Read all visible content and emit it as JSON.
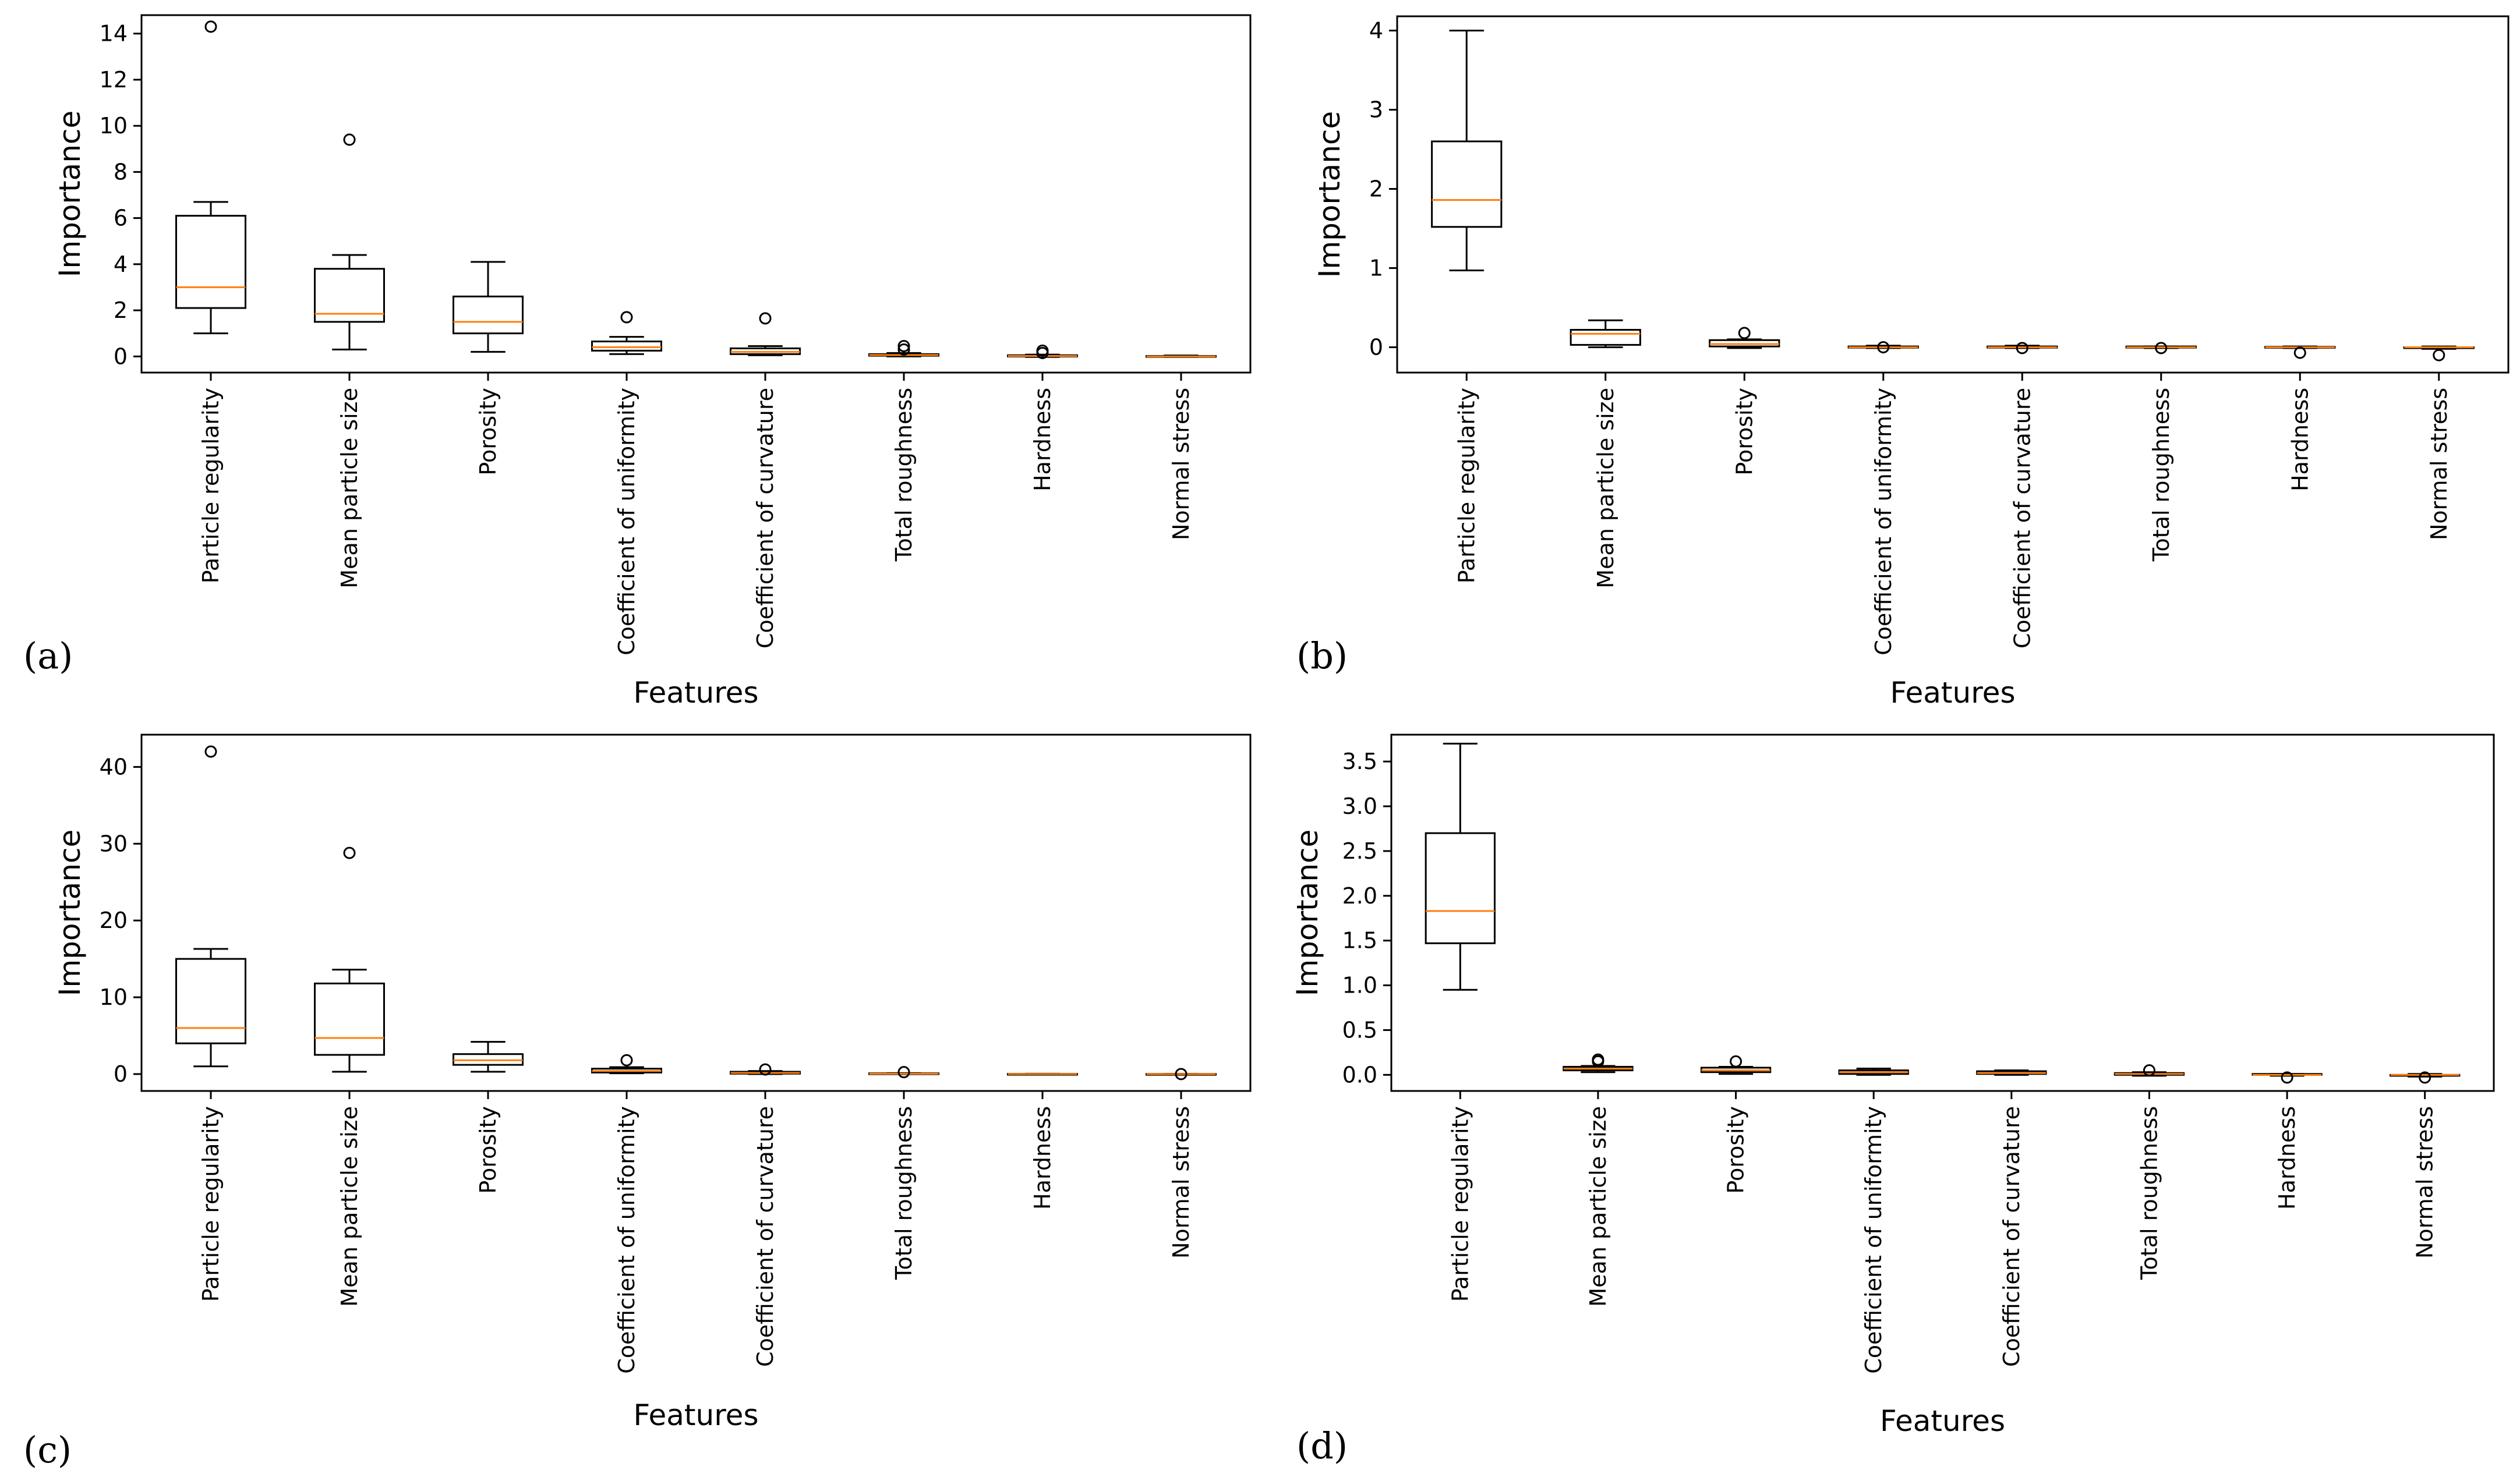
{
  "figure": {
    "colors": {
      "box": "#000000",
      "median": "#ff7f0e",
      "background": "#ffffff"
    }
  },
  "chart_data": [
    {
      "panel": "(a)",
      "type": "box",
      "xlabel": "Features",
      "ylabel": "Importance",
      "ylim": [
        -0.7,
        14.8
      ],
      "yticks": [
        0,
        2,
        4,
        6,
        8,
        10,
        12,
        14
      ],
      "categories": [
        "Particle regularity",
        "Mean particle size",
        "Porosity",
        "Coefficient of uniformity",
        "Coefficient of curvature",
        "Total roughness",
        "Hardness",
        "Normal stress"
      ],
      "boxes": [
        {
          "whislo": 1.0,
          "q1": 2.1,
          "med": 3.0,
          "q3": 6.1,
          "whishi": 6.7,
          "fliers": [
            14.3
          ]
        },
        {
          "whislo": 0.3,
          "q1": 1.5,
          "med": 1.85,
          "q3": 3.8,
          "whishi": 4.4,
          "fliers": [
            9.4
          ]
        },
        {
          "whislo": 0.2,
          "q1": 1.0,
          "med": 1.5,
          "q3": 2.6,
          "whishi": 4.1,
          "fliers": []
        },
        {
          "whislo": 0.1,
          "q1": 0.25,
          "med": 0.4,
          "q3": 0.65,
          "whishi": 0.85,
          "fliers": [
            1.7
          ]
        },
        {
          "whislo": 0.05,
          "q1": 0.1,
          "med": 0.2,
          "q3": 0.35,
          "whishi": 0.45,
          "fliers": [
            1.65
          ]
        },
        {
          "whislo": 0.0,
          "q1": 0.03,
          "med": 0.06,
          "q3": 0.1,
          "whishi": 0.15,
          "fliers": [
            0.3,
            0.45
          ]
        },
        {
          "whislo": -0.02,
          "q1": 0.0,
          "med": 0.02,
          "q3": 0.05,
          "whishi": 0.08,
          "fliers": [
            0.15,
            0.25
          ]
        },
        {
          "whislo": -0.02,
          "q1": 0.0,
          "med": 0.0,
          "q3": 0.02,
          "whishi": 0.04,
          "fliers": []
        }
      ]
    },
    {
      "panel": "(b)",
      "type": "box",
      "xlabel": "Features",
      "ylabel": "Importance",
      "ylim": [
        -0.32,
        4.18
      ],
      "yticks": [
        0,
        1,
        2,
        3,
        4
      ],
      "categories": [
        "Particle regularity",
        "Mean particle size",
        "Porosity",
        "Coefficient of uniformity",
        "Coefficient of curvature",
        "Total roughness",
        "Hardness",
        "Normal stress"
      ],
      "boxes": [
        {
          "whislo": 0.97,
          "q1": 1.52,
          "med": 1.86,
          "q3": 2.6,
          "whishi": 4.0,
          "fliers": []
        },
        {
          "whislo": 0.0,
          "q1": 0.03,
          "med": 0.17,
          "q3": 0.22,
          "whishi": 0.34,
          "fliers": []
        },
        {
          "whislo": -0.01,
          "q1": 0.01,
          "med": 0.04,
          "q3": 0.09,
          "whishi": 0.1,
          "fliers": [
            0.18
          ]
        },
        {
          "whislo": -0.01,
          "q1": -0.005,
          "med": 0.0,
          "q3": 0.01,
          "whishi": 0.02,
          "fliers": [
            0.0
          ]
        },
        {
          "whislo": -0.01,
          "q1": -0.005,
          "med": 0.0,
          "q3": 0.01,
          "whishi": 0.02,
          "fliers": [
            -0.01
          ]
        },
        {
          "whislo": -0.01,
          "q1": -0.005,
          "med": 0.0,
          "q3": 0.01,
          "whishi": 0.01,
          "fliers": [
            -0.01
          ]
        },
        {
          "whislo": -0.01,
          "q1": -0.005,
          "med": 0.0,
          "q3": 0.005,
          "whishi": 0.01,
          "fliers": [
            -0.07
          ]
        },
        {
          "whislo": -0.02,
          "q1": -0.01,
          "med": 0.0,
          "q3": 0.0,
          "whishi": 0.01,
          "fliers": [
            -0.1
          ]
        }
      ]
    },
    {
      "panel": "(c)",
      "type": "box",
      "xlabel": "Features",
      "ylabel": "Importance",
      "ylim": [
        -2.2,
        44.2
      ],
      "yticks": [
        0,
        10,
        20,
        30,
        40
      ],
      "categories": [
        "Particle regularity",
        "Mean particle size",
        "Porosity",
        "Coefficient of uniformity",
        "Coefficient of curvature",
        "Total roughness",
        "Hardness",
        "Normal stress"
      ],
      "boxes": [
        {
          "whislo": 1.0,
          "q1": 4.0,
          "med": 6.0,
          "q3": 15.0,
          "whishi": 16.3,
          "fliers": [
            42.0
          ]
        },
        {
          "whislo": 0.3,
          "q1": 2.5,
          "med": 4.7,
          "q3": 11.8,
          "whishi": 13.6,
          "fliers": [
            28.8
          ]
        },
        {
          "whislo": 0.3,
          "q1": 1.2,
          "med": 1.8,
          "q3": 2.6,
          "whishi": 4.2,
          "fliers": []
        },
        {
          "whislo": 0.1,
          "q1": 0.2,
          "med": 0.4,
          "q3": 0.7,
          "whishi": 0.9,
          "fliers": [
            1.8
          ]
        },
        {
          "whislo": 0.0,
          "q1": 0.05,
          "med": 0.15,
          "q3": 0.3,
          "whishi": 0.4,
          "fliers": [
            0.6
          ]
        },
        {
          "whislo": 0.0,
          "q1": 0.02,
          "med": 0.05,
          "q3": 0.1,
          "whishi": 0.12,
          "fliers": [
            0.25
          ]
        },
        {
          "whislo": 0.0,
          "q1": 0.0,
          "med": 0.01,
          "q3": 0.03,
          "whishi": 0.05,
          "fliers": []
        },
        {
          "whislo": -0.01,
          "q1": 0.0,
          "med": 0.0,
          "q3": 0.02,
          "whishi": 0.03,
          "fliers": [
            0.0
          ]
        }
      ]
    },
    {
      "panel": "(d)",
      "type": "box",
      "xlabel": "Features",
      "ylabel": "Importance",
      "ylim": [
        -0.18,
        3.8
      ],
      "yticks": [
        0.0,
        0.5,
        1.0,
        1.5,
        2.0,
        2.5,
        3.0,
        3.5
      ],
      "categories": [
        "Particle regularity",
        "Mean particle size",
        "Porosity",
        "Coefficient of uniformity",
        "Coefficient of curvature",
        "Total roughness",
        "Hardness",
        "Normal stress"
      ],
      "boxes": [
        {
          "whislo": 0.95,
          "q1": 1.47,
          "med": 1.83,
          "q3": 2.7,
          "whishi": 3.7,
          "fliers": []
        },
        {
          "whislo": 0.03,
          "q1": 0.05,
          "med": 0.07,
          "q3": 0.09,
          "whishi": 0.1,
          "fliers": [
            0.15,
            0.17
          ]
        },
        {
          "whislo": 0.01,
          "q1": 0.03,
          "med": 0.05,
          "q3": 0.08,
          "whishi": 0.09,
          "fliers": [
            0.15
          ]
        },
        {
          "whislo": 0.0,
          "q1": 0.01,
          "med": 0.03,
          "q3": 0.05,
          "whishi": 0.07,
          "fliers": []
        },
        {
          "whislo": 0.0,
          "q1": 0.01,
          "med": 0.02,
          "q3": 0.04,
          "whishi": 0.05,
          "fliers": []
        },
        {
          "whislo": -0.01,
          "q1": 0.0,
          "med": 0.01,
          "q3": 0.02,
          "whishi": 0.03,
          "fliers": [
            0.05
          ]
        },
        {
          "whislo": -0.01,
          "q1": 0.0,
          "med": 0.0,
          "q3": 0.01,
          "whishi": 0.01,
          "fliers": [
            -0.03
          ]
        },
        {
          "whislo": -0.02,
          "q1": -0.01,
          "med": 0.0,
          "q3": 0.0,
          "whishi": 0.01,
          "fliers": [
            -0.03
          ]
        }
      ]
    }
  ]
}
